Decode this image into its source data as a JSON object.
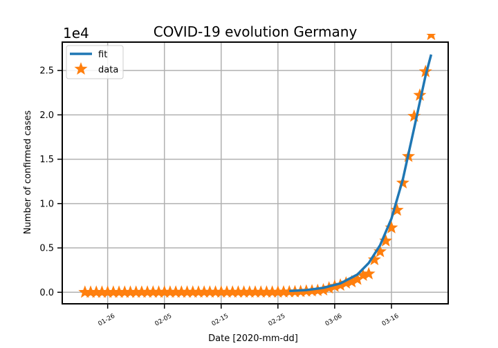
{
  "chart_data": {
    "type": "line",
    "title": "COVID-19 evolution Germany",
    "xlabel": "Date [2020-mm-dd]",
    "ylabel": "Number of confirmed cases",
    "y_offset_label": "1e4",
    "x_ticks": [
      "01-26",
      "02-05",
      "02-15",
      "02-25",
      "03-06",
      "03-16"
    ],
    "x_tick_dates": [
      "2020-01-26",
      "2020-02-05",
      "2020-02-15",
      "2020-02-25",
      "2020-03-06",
      "2020-03-16"
    ],
    "y_ticks": [
      "0.0",
      "0.5",
      "1.0",
      "1.5",
      "2.0",
      "2.5"
    ],
    "y_tick_values": [
      0,
      5000,
      10000,
      15000,
      20000,
      25000
    ],
    "xlim": [
      "2020-01-18",
      "2020-03-26"
    ],
    "ylim": [
      -1300,
      28200
    ],
    "grid": true,
    "legend_position": "upper-left",
    "series": [
      {
        "name": "fit",
        "kind": "line",
        "color": "#1f77b4",
        "x": [
          "2020-02-27",
          "2020-03-01",
          "2020-03-04",
          "2020-03-07",
          "2020-03-10",
          "2020-03-12",
          "2020-03-14",
          "2020-03-16",
          "2020-03-18",
          "2020-03-20",
          "2020-03-22",
          "2020-03-23"
        ],
        "y": [
          150,
          250,
          500,
          1000,
          2000,
          3300,
          5300,
          8300,
          12700,
          18500,
          24400,
          26800
        ]
      },
      {
        "name": "data",
        "kind": "scatter",
        "marker": "star",
        "color": "#ff7f0e",
        "x": [
          "2020-01-22",
          "2020-01-23",
          "2020-01-24",
          "2020-01-25",
          "2020-01-26",
          "2020-01-27",
          "2020-01-28",
          "2020-01-29",
          "2020-01-30",
          "2020-01-31",
          "2020-02-01",
          "2020-02-02",
          "2020-02-03",
          "2020-02-04",
          "2020-02-05",
          "2020-02-06",
          "2020-02-07",
          "2020-02-08",
          "2020-02-09",
          "2020-02-10",
          "2020-02-11",
          "2020-02-12",
          "2020-02-13",
          "2020-02-14",
          "2020-02-15",
          "2020-02-16",
          "2020-02-17",
          "2020-02-18",
          "2020-02-19",
          "2020-02-20",
          "2020-02-21",
          "2020-02-22",
          "2020-02-23",
          "2020-02-24",
          "2020-02-25",
          "2020-02-26",
          "2020-02-27",
          "2020-02-28",
          "2020-02-29",
          "2020-03-01",
          "2020-03-02",
          "2020-03-03",
          "2020-03-04",
          "2020-03-05",
          "2020-03-06",
          "2020-03-07",
          "2020-03-08",
          "2020-03-09",
          "2020-03-10",
          "2020-03-11",
          "2020-03-12",
          "2020-03-13",
          "2020-03-14",
          "2020-03-15",
          "2020-03-16",
          "2020-03-17",
          "2020-03-18",
          "2020-03-19",
          "2020-03-20",
          "2020-03-21",
          "2020-03-22",
          "2020-03-23"
        ],
        "y": [
          0,
          0,
          0,
          0,
          0,
          1,
          4,
          4,
          4,
          5,
          8,
          10,
          12,
          12,
          12,
          12,
          13,
          13,
          14,
          14,
          16,
          16,
          16,
          16,
          16,
          16,
          16,
          16,
          16,
          16,
          16,
          16,
          16,
          16,
          17,
          27,
          46,
          48,
          79,
          130,
          159,
          196,
          262,
          482,
          670,
          799,
          1040,
          1176,
          1457,
          1908,
          2078,
          3675,
          4585,
          5795,
          7272,
          9257,
          12327,
          15320,
          19848,
          22213,
          24873,
          29056
        ]
      }
    ]
  }
}
